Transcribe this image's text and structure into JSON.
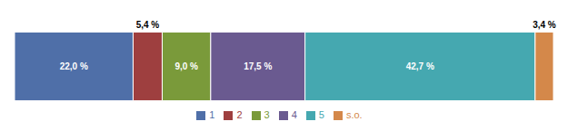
{
  "chart_data": {
    "type": "bar",
    "orientation": "horizontal",
    "stacked": true,
    "categories": [
      null
    ],
    "series": [
      {
        "name": "1",
        "color": "#4f6fa8",
        "values": [
          22.0
        ],
        "value_labels": [
          "22,0 %"
        ]
      },
      {
        "name": "2",
        "color": "#9e3f3f",
        "values": [
          5.4
        ],
        "value_labels": [
          "5,4 %"
        ]
      },
      {
        "name": "3",
        "color": "#7a9a3a",
        "values": [
          9.0
        ],
        "value_labels": [
          "9,0 %"
        ]
      },
      {
        "name": "4",
        "color": "#6a5a90",
        "values": [
          17.5
        ],
        "value_labels": [
          "17,5 %"
        ]
      },
      {
        "name": "5",
        "color": "#45a8b0",
        "values": [
          42.7
        ],
        "value_labels": [
          "42,7 %"
        ]
      },
      {
        "name": "s.o.",
        "color": "#d4884a",
        "values": [
          3.4
        ],
        "value_labels": [
          "3,4 %"
        ]
      }
    ],
    "xlim": [
      0,
      100
    ],
    "data_labels": true,
    "tick_labels": false,
    "grid": false,
    "legend": "bottom"
  }
}
